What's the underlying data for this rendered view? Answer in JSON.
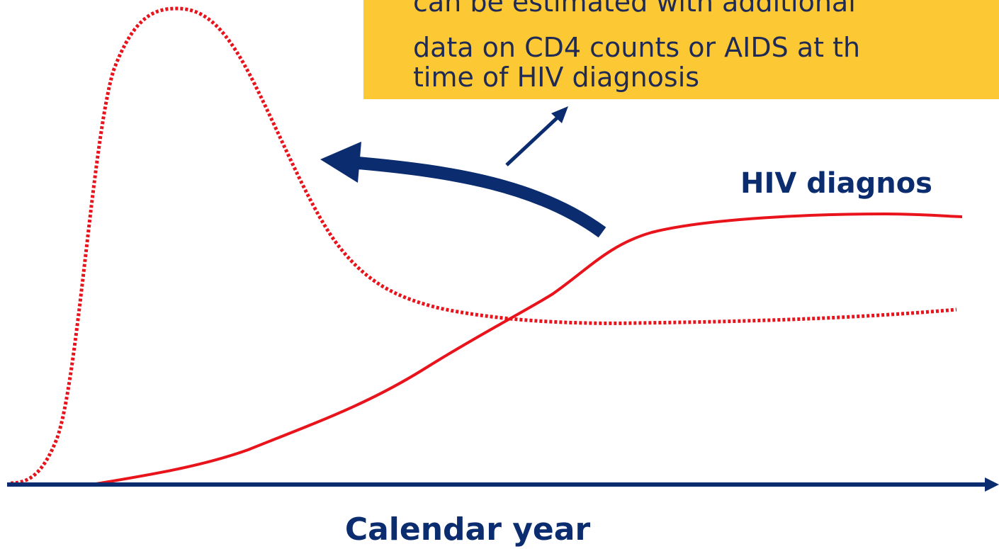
{
  "note": {
    "lines": [
      "can be estimated with additional",
      "data on CD4 counts or AIDS at th",
      "time of HIV diagnosis"
    ]
  },
  "labels": {
    "hiv_diagnoses": "HIV diagnos",
    "x_axis": "Calendar year"
  }
}
